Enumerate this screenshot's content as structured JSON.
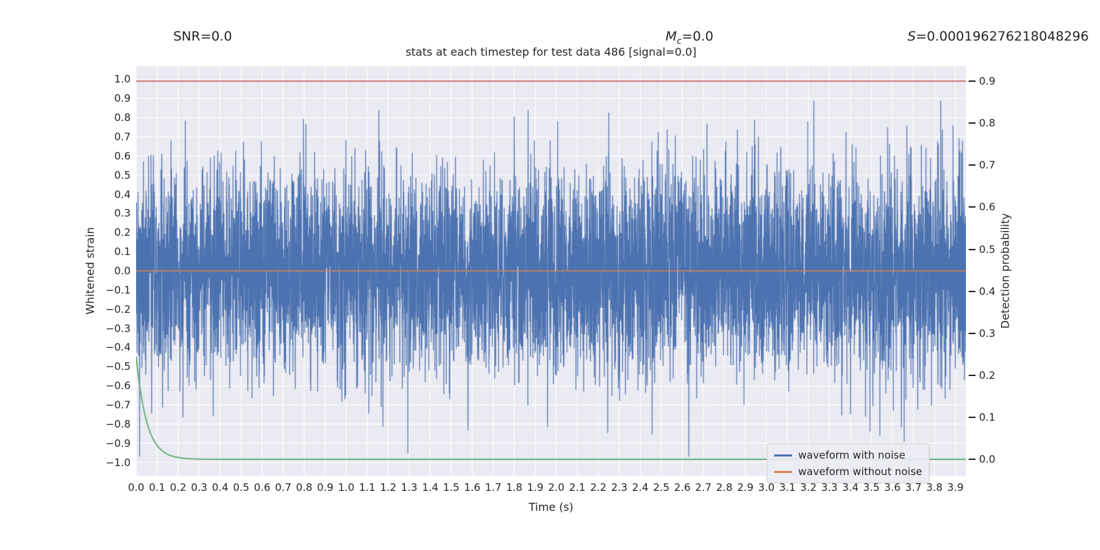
{
  "annotations": {
    "snr": "SNR=0.0",
    "mc_var": "M",
    "mc_sub": "c",
    "mc_rest": "=0.0",
    "s_var": "S",
    "s_rest": "=0.000196276218048296"
  },
  "chart_data": {
    "type": "line",
    "title": "stats at each timestep for test data 486 [signal=0.0]",
    "xlabel": "Time (s)",
    "ylabel_left": "Whitened strain",
    "ylabel_right": "Detection probability",
    "xlim": [
      0.0,
      3.95
    ],
    "ylim_left": [
      -1.07,
      1.07
    ],
    "ylim_right": [
      -0.039,
      0.936
    ],
    "grid": true,
    "plot_background": "#eaeaf2",
    "grid_color": "#ffffff",
    "text_color": "#262626",
    "x_tick_labels": [
      "0.0",
      "0.1",
      "0.2",
      "0.3",
      "0.4",
      "0.5",
      "0.6",
      "0.7",
      "0.8",
      "0.9",
      "1.0",
      "1.1",
      "1.2",
      "1.3",
      "1.4",
      "1.5",
      "1.6",
      "1.7",
      "1.8",
      "1.9",
      "2.0",
      "2.1",
      "2.2",
      "2.3",
      "2.4",
      "2.5",
      "2.6",
      "2.7",
      "2.8",
      "2.9",
      "3.0",
      "3.1",
      "3.2",
      "3.3",
      "3.4",
      "3.5",
      "3.6",
      "3.7",
      "3.8",
      "3.9"
    ],
    "y_tick_labels_left": [
      "1.0",
      "0.9",
      "0.8",
      "0.7",
      "0.6",
      "0.5",
      "0.4",
      "0.3",
      "0.2",
      "0.1",
      "0.0",
      "−0.1",
      "−0.2",
      "−0.3",
      "−0.4",
      "−0.5",
      "−0.6",
      "−0.7",
      "−0.8",
      "−0.9",
      "−1.0"
    ],
    "y_tick_labels_right": [
      "0.9",
      "0.8",
      "0.7",
      "0.6",
      "0.5",
      "0.4",
      "0.3",
      "0.2",
      "0.1",
      "0.0"
    ],
    "series": [
      {
        "name": "waveform with noise",
        "kind": "gaussian_noise",
        "axis": "left",
        "color": "#4C72B0",
        "n_points": 6144,
        "std": 0.27,
        "seed": 486,
        "x_start": 0.0,
        "x_end": 3.95,
        "peak_max": 0.98,
        "peak_min": -1.0
      },
      {
        "name": "waveform without noise",
        "kind": "constant",
        "axis": "left",
        "color": "#DD8452",
        "value": 0.0
      },
      {
        "name": "detection-probability-curve",
        "kind": "exp_decay",
        "axis": "right",
        "color": "#55A868",
        "start": 0.245,
        "tau": 0.05,
        "floor": 0.0,
        "x_end": 3.95
      },
      {
        "name": "threshold-line",
        "kind": "constant",
        "axis": "right",
        "color": "#C44E52",
        "value": 0.9
      }
    ],
    "legend": {
      "location": "lower right",
      "entries": [
        {
          "label": "waveform with noise",
          "color": "#4C72B0"
        },
        {
          "label": "waveform without noise",
          "color": "#DD8452"
        }
      ]
    }
  }
}
